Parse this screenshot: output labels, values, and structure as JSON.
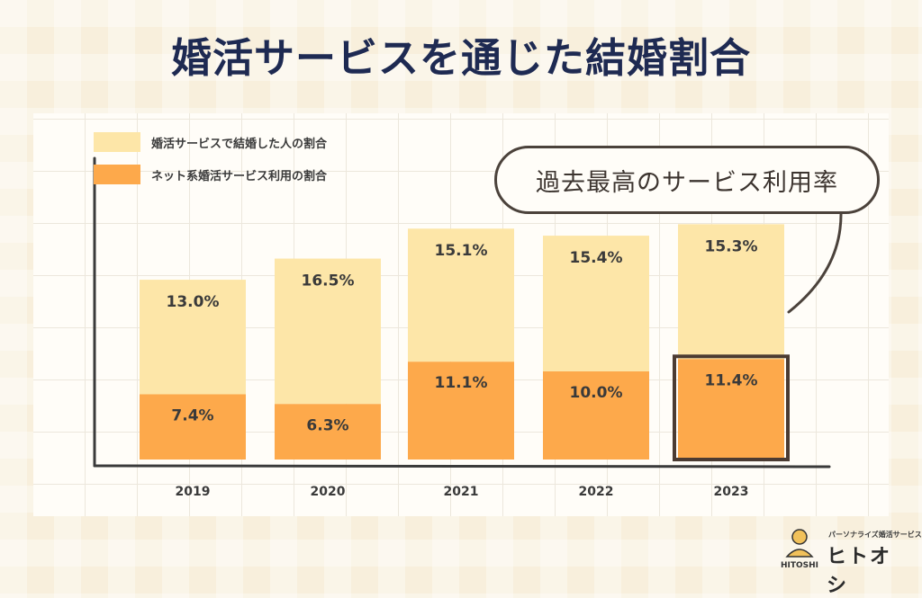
{
  "title": "婚活サービスを通じた結婚割合",
  "callout": "過去最高のサービス利用率",
  "brand": {
    "tagline": "パーソナライズ婚活サービス",
    "name": "ヒトオシ",
    "logo_text": "HITOSHI"
  },
  "colors": {
    "top": "#fde6a8",
    "bottom": "#fda94b",
    "highlight_border": "#4b3b32",
    "axis": "#3a3a3a"
  },
  "chart_data": {
    "type": "bar",
    "stacked": true,
    "categories": [
      "2019",
      "2020",
      "2021",
      "2022",
      "2023"
    ],
    "series": [
      {
        "name": "婚活サービスで結婚した人の割合",
        "values": [
          13.0,
          16.5,
          15.1,
          15.4,
          15.3
        ],
        "labels": [
          "13.0%",
          "16.5%",
          "15.1%",
          "15.4%",
          "15.3%"
        ]
      },
      {
        "name": "ネット系婚活サービス利用の割合",
        "values": [
          7.4,
          6.3,
          11.1,
          10.0,
          11.4
        ],
        "labels": [
          "7.4%",
          "6.3%",
          "11.1%",
          "10.0%",
          "11.4%"
        ]
      }
    ],
    "highlight_category": "2023",
    "xlabel": "",
    "ylabel": "",
    "grid": true,
    "legend": "top-left"
  }
}
